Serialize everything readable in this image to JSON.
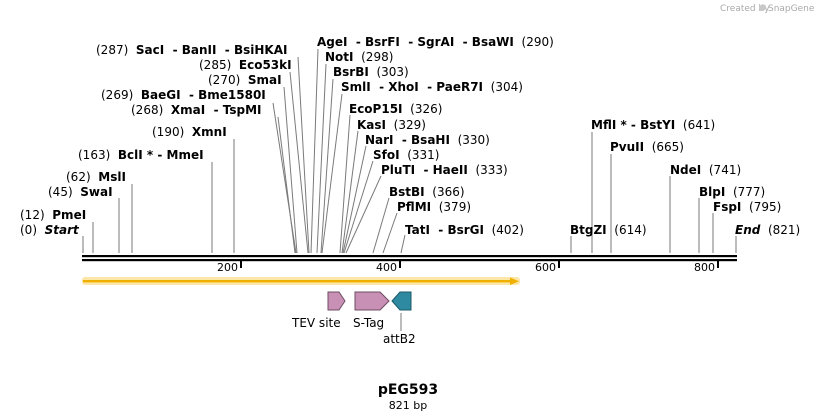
{
  "credit": "Created by",
  "credit_brand": "SnapGene",
  "title": "pEG593",
  "subtitle": "821 bp",
  "sequence_length": 821,
  "ruler_ticks": [
    "200",
    "400",
    "600",
    "800"
  ],
  "sites": [
    {
      "text": "(0)  ",
      "name": "Start",
      "italic": true
    },
    {
      "text": "(12)  ",
      "name": "PmeI"
    },
    {
      "text": "(45)  ",
      "name": "SwaI"
    },
    {
      "text": "(62)  ",
      "name": "MslI"
    },
    {
      "text": "(163)  ",
      "name": "BclI * - MmeI"
    },
    {
      "text": "(190)  ",
      "name": "XmnI"
    },
    {
      "text": "(268)  ",
      "name": "XmaI  - TspMI"
    },
    {
      "text": "(269)  ",
      "name": "BaeGI  - Bme1580I"
    },
    {
      "text": "(270)  ",
      "name": "SmaI"
    },
    {
      "text": "(285)  ",
      "name": "Eco53kI"
    },
    {
      "text": "(287)  ",
      "name": "SacI  - BanII  - BsiHKAI"
    },
    {
      "name": "AgeI  - BsrFI  - SgrAI  - BsaWI",
      "after": "  (290)"
    },
    {
      "name": "NotI",
      "after": "  (298)"
    },
    {
      "name": "BsrBI",
      "after": "  (303)"
    },
    {
      "name": "SmlI  - XhoI  - PaeR7I",
      "after": "  (304)"
    },
    {
      "name": "EcoP15I",
      "after": "  (326)"
    },
    {
      "name": "KasI",
      "after": "  (329)"
    },
    {
      "name": "NarI  - BsaHI",
      "after": "  (330)"
    },
    {
      "name": "SfoI",
      "after": "  (331)"
    },
    {
      "name": "PluTI  - HaeII",
      "after": "  (333)"
    },
    {
      "name": "BstBI",
      "after": "  (366)"
    },
    {
      "name": "PflMI",
      "after": "  (379)"
    },
    {
      "name": "TatI  - BsrGI",
      "after": "  (402)"
    },
    {
      "name": "BtgZI",
      "after": "  (614)"
    },
    {
      "name": "MflI * - BstYI",
      "after": "  (641)"
    },
    {
      "name": "PvuII",
      "after": "  (665)"
    },
    {
      "name": "NdeI",
      "after": "  (741)"
    },
    {
      "name": "BlpI",
      "after": "  (777)"
    },
    {
      "name": "FspI",
      "after": "  (795)"
    },
    {
      "name": "End",
      "after": "  (821)",
      "italic": true
    }
  ],
  "features": [
    {
      "label": "TEV site",
      "color": "#c890b4"
    },
    {
      "label": "S-Tag",
      "color": "#c890b4"
    },
    {
      "label": "attB2",
      "color": "#2e8aa0"
    }
  ],
  "colors": {
    "orf": "#f0b000",
    "orf_glow": "#fde6a8"
  }
}
